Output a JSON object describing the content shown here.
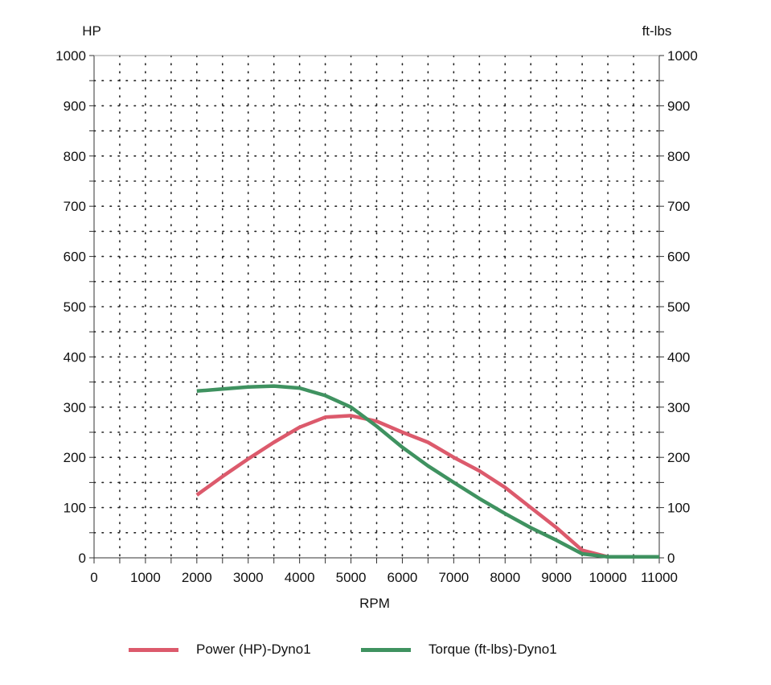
{
  "chart_data": {
    "type": "line",
    "xlabel": "RPM",
    "ylabel_left": "HP",
    "ylabel_right": "ft-lbs",
    "xlim": [
      0,
      11000
    ],
    "ylim": [
      0,
      1000
    ],
    "x_ticks": [
      "0",
      "1000",
      "2000",
      "3000",
      "4000",
      "5000",
      "6000",
      "7000",
      "8000",
      "9000",
      "10000",
      "11000"
    ],
    "y_ticks": [
      "0",
      "100",
      "200",
      "300",
      "400",
      "500",
      "600",
      "700",
      "800",
      "900",
      "1000"
    ],
    "grid": "dotted",
    "legend_position": "bottom",
    "series": [
      {
        "name": "Power (HP)-Dyno1",
        "color": "#dc5a6c",
        "x": [
          2000,
          2500,
          3000,
          3500,
          4000,
          4500,
          5000,
          5500,
          6000,
          6500,
          7000,
          7500,
          8000,
          8500,
          9000,
          9500,
          10000,
          10500,
          11000
        ],
        "y": [
          125,
          162,
          197,
          230,
          260,
          280,
          283,
          272,
          250,
          230,
          200,
          173,
          140,
          100,
          60,
          15,
          2,
          2,
          2
        ]
      },
      {
        "name": "Torque (ft-lbs)-Dyno1",
        "color": "#3f9260",
        "x": [
          2000,
          2500,
          3000,
          3500,
          4000,
          4500,
          5000,
          5500,
          6000,
          6500,
          7000,
          7500,
          8000,
          8500,
          9000,
          9500,
          10000,
          10500,
          11000
        ],
        "y": [
          332,
          336,
          340,
          342,
          338,
          323,
          300,
          262,
          220,
          183,
          150,
          118,
          88,
          60,
          35,
          8,
          2,
          2,
          2
        ]
      }
    ]
  }
}
